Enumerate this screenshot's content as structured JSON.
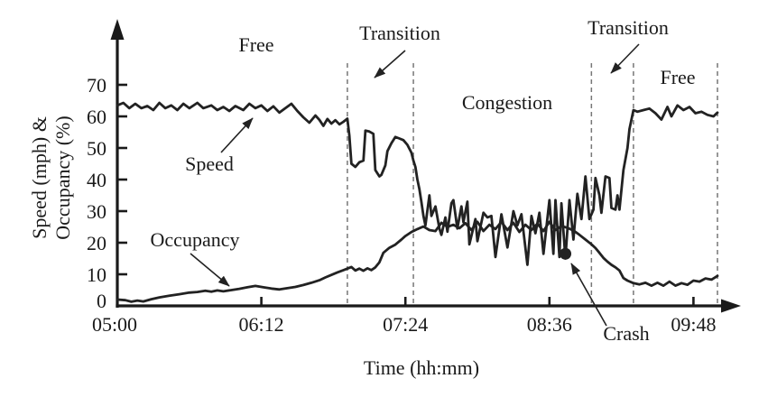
{
  "axes": {
    "x_label": "Time (hh:mm)",
    "y_label_line1": "Speed (mph) &",
    "y_label_line2": "Occupancy (%)"
  },
  "annotations": {
    "region_free_left": "Free",
    "region_transition_left": "Transition",
    "region_congestion": "Congestion",
    "region_transition_right": "Transition",
    "region_free_right": "Free",
    "series_speed": "Speed",
    "series_occupancy": "Occupancy",
    "crash": "Crash"
  },
  "colors": {
    "line": "#222222",
    "boundary_dash": "#777777",
    "text": "#1a1a1a",
    "background": "#ffffff"
  },
  "chart_data": {
    "type": "line",
    "title": "",
    "xlabel": "Time (hh:mm)",
    "ylabel": "Speed (mph) & Occupancy (%)",
    "x_unit": "minutes after 05:00",
    "xlim": [
      0,
      300
    ],
    "ylim": [
      0,
      75
    ],
    "grid": false,
    "legend": "inline-arrow-labels",
    "x_ticks": [
      {
        "t": 0,
        "label": "05:00"
      },
      {
        "t": 72,
        "label": "06:12"
      },
      {
        "t": 144,
        "label": "07:24"
      },
      {
        "t": 216,
        "label": "08:36"
      },
      {
        "t": 288,
        "label": "09:48"
      }
    ],
    "y_ticks": [
      0,
      10,
      20,
      30,
      40,
      50,
      60,
      70
    ],
    "region_boundaries_t": [
      115,
      148,
      237,
      258,
      300
    ],
    "regions": [
      {
        "label": "Free",
        "t_start": 0,
        "t_end": 115
      },
      {
        "label": "Transition",
        "t_start": 115,
        "t_end": 148
      },
      {
        "label": "Congestion",
        "t_start": 148,
        "t_end": 237
      },
      {
        "label": "Transition",
        "t_start": 237,
        "t_end": 258
      },
      {
        "label": "Free",
        "t_start": 258,
        "t_end": 300
      }
    ],
    "crash_point": {
      "t": 224,
      "value": 16.5,
      "label": "Crash"
    },
    "series": [
      {
        "name": "Speed",
        "unit": "mph",
        "points": [
          [
            0,
            63.5
          ],
          [
            3,
            64.3
          ],
          [
            6,
            62.6
          ],
          [
            9,
            64
          ],
          [
            12,
            62.6
          ],
          [
            15,
            63.3
          ],
          [
            18,
            62
          ],
          [
            21,
            64.3
          ],
          [
            24,
            62.6
          ],
          [
            27,
            63.5
          ],
          [
            30,
            62
          ],
          [
            33,
            64
          ],
          [
            36,
            62.6
          ],
          [
            40,
            64.3
          ],
          [
            43,
            62.6
          ],
          [
            47,
            63.5
          ],
          [
            50,
            62
          ],
          [
            53,
            63
          ],
          [
            56,
            61.7
          ],
          [
            59,
            63.3
          ],
          [
            63,
            62
          ],
          [
            66,
            64
          ],
          [
            69,
            62.6
          ],
          [
            72,
            63.5
          ],
          [
            75,
            61.7
          ],
          [
            78,
            63.2
          ],
          [
            81,
            61.2
          ],
          [
            84,
            62.6
          ],
          [
            87,
            64
          ],
          [
            90,
            61.7
          ],
          [
            93,
            59.7
          ],
          [
            96,
            58
          ],
          [
            99,
            60.3
          ],
          [
            101,
            58.9
          ],
          [
            103,
            57
          ],
          [
            105,
            59.2
          ],
          [
            107,
            57.7
          ],
          [
            109,
            58.8
          ],
          [
            111,
            57.5
          ],
          [
            113,
            58.3
          ],
          [
            115,
            59.3
          ],
          [
            116,
            54
          ],
          [
            117,
            45
          ],
          [
            119,
            44
          ],
          [
            121,
            45.5
          ],
          [
            123,
            46
          ],
          [
            124,
            55.5
          ],
          [
            126,
            55.2
          ],
          [
            128,
            54.5
          ],
          [
            129,
            43
          ],
          [
            131,
            41
          ],
          [
            132,
            41.5
          ],
          [
            134,
            44.5
          ],
          [
            135,
            49
          ],
          [
            137,
            51.5
          ],
          [
            139,
            53.5
          ],
          [
            141,
            53
          ],
          [
            143,
            52.5
          ],
          [
            145,
            51
          ],
          [
            147,
            48.5
          ],
          [
            148,
            46
          ],
          [
            149,
            44
          ],
          [
            150,
            40
          ],
          [
            151,
            37
          ],
          [
            152,
            33
          ],
          [
            153,
            28.5
          ],
          [
            154,
            25.5
          ],
          [
            156,
            35
          ],
          [
            157,
            28.5
          ],
          [
            159,
            31.5
          ],
          [
            161,
            24.5
          ],
          [
            162,
            22.5
          ],
          [
            164,
            28
          ],
          [
            165,
            23.5
          ],
          [
            167,
            32.5
          ],
          [
            168,
            33.5
          ],
          [
            170,
            24.5
          ],
          [
            172,
            31.5
          ],
          [
            173,
            26.5
          ],
          [
            175,
            33
          ],
          [
            176,
            19.5
          ],
          [
            179,
            27.5
          ],
          [
            180,
            20.5
          ],
          [
            183,
            29.5
          ],
          [
            185,
            28
          ],
          [
            187,
            28.5
          ],
          [
            189,
            15.5
          ],
          [
            192,
            29
          ],
          [
            195,
            18.5
          ],
          [
            198,
            30
          ],
          [
            200,
            25.5
          ],
          [
            202,
            29
          ],
          [
            205,
            13
          ],
          [
            207,
            28.5
          ],
          [
            209,
            23
          ],
          [
            211,
            29.5
          ],
          [
            213,
            16.5
          ],
          [
            216,
            33.5
          ],
          [
            218,
            16.5
          ],
          [
            219,
            33.5
          ],
          [
            221,
            15.5
          ],
          [
            222,
            32.5
          ],
          [
            224,
            15
          ],
          [
            226,
            33.5
          ],
          [
            228,
            21
          ],
          [
            230,
            35.5
          ],
          [
            232,
            27.5
          ],
          [
            234,
            41
          ],
          [
            236,
            27.5
          ],
          [
            238,
            30.5
          ],
          [
            239,
            40.5
          ],
          [
            241,
            35
          ],
          [
            242,
            29.5
          ],
          [
            244,
            41
          ],
          [
            246,
            40.5
          ],
          [
            247,
            31
          ],
          [
            249,
            30.5
          ],
          [
            250,
            35
          ],
          [
            251,
            30.5
          ],
          [
            253,
            43
          ],
          [
            255,
            50
          ],
          [
            256,
            56
          ],
          [
            258,
            62
          ],
          [
            260,
            61.5
          ],
          [
            263,
            62
          ],
          [
            266,
            62.5
          ],
          [
            269,
            61
          ],
          [
            272,
            59
          ],
          [
            275,
            63
          ],
          [
            277,
            60
          ],
          [
            280,
            63.5
          ],
          [
            283,
            62
          ],
          [
            286,
            63
          ],
          [
            289,
            61
          ],
          [
            292,
            61.5
          ],
          [
            295,
            60.5
          ],
          [
            298,
            60
          ],
          [
            300,
            61.2
          ]
        ]
      },
      {
        "name": "Occupancy",
        "unit": "%",
        "points": [
          [
            0,
            2
          ],
          [
            4,
            1.8
          ],
          [
            7,
            1.3
          ],
          [
            10,
            1.7
          ],
          [
            13,
            1.4
          ],
          [
            17,
            2.1
          ],
          [
            21,
            2.7
          ],
          [
            26,
            3.2
          ],
          [
            31,
            3.7
          ],
          [
            36,
            4.2
          ],
          [
            40,
            4.4
          ],
          [
            44,
            4.8
          ],
          [
            47,
            4.5
          ],
          [
            50,
            4.9
          ],
          [
            53,
            4.6
          ],
          [
            57,
            5
          ],
          [
            61,
            5.4
          ],
          [
            65,
            5.9
          ],
          [
            69,
            6.3
          ],
          [
            73,
            5.9
          ],
          [
            77,
            5.5
          ],
          [
            81,
            5.2
          ],
          [
            85,
            5.6
          ],
          [
            89,
            6
          ],
          [
            93,
            6.6
          ],
          [
            97,
            7.3
          ],
          [
            101,
            8.1
          ],
          [
            104,
            9
          ],
          [
            107,
            9.8
          ],
          [
            110,
            10.6
          ],
          [
            113,
            11.3
          ],
          [
            115,
            11.8
          ],
          [
            117,
            12.3
          ],
          [
            119,
            11.2
          ],
          [
            121,
            11.8
          ],
          [
            123,
            11.1
          ],
          [
            125,
            11.9
          ],
          [
            127,
            11.3
          ],
          [
            129,
            12.2
          ],
          [
            131,
            13.8
          ],
          [
            133,
            16.8
          ],
          [
            136,
            18.4
          ],
          [
            139,
            19.4
          ],
          [
            142,
            21
          ],
          [
            144,
            22.1
          ],
          [
            147,
            23.4
          ],
          [
            150,
            24.3
          ],
          [
            153,
            25.1
          ],
          [
            156,
            24
          ],
          [
            159,
            23.7
          ],
          [
            162,
            26.3
          ],
          [
            165,
            25
          ],
          [
            168,
            25.7
          ],
          [
            171,
            24.6
          ],
          [
            174,
            26.2
          ],
          [
            177,
            24
          ],
          [
            180,
            26.6
          ],
          [
            183,
            23.7
          ],
          [
            186,
            25.7
          ],
          [
            189,
            24.3
          ],
          [
            192,
            26.6
          ],
          [
            195,
            24
          ],
          [
            198,
            26.3
          ],
          [
            201,
            23.4
          ],
          [
            204,
            25.7
          ],
          [
            207,
            24
          ],
          [
            210,
            26
          ],
          [
            213,
            23.7
          ],
          [
            216,
            26.6
          ],
          [
            219,
            24
          ],
          [
            222,
            25.3
          ],
          [
            225,
            24.7
          ],
          [
            228,
            23.9
          ],
          [
            231,
            22.5
          ],
          [
            234,
            21
          ],
          [
            237,
            19.5
          ],
          [
            239,
            18.3
          ],
          [
            241,
            16.8
          ],
          [
            243,
            15.2
          ],
          [
            245,
            14
          ],
          [
            247,
            13
          ],
          [
            249,
            12.2
          ],
          [
            251,
            11.2
          ],
          [
            252,
            10
          ],
          [
            253,
            8.8
          ],
          [
            255,
            8
          ],
          [
            258,
            7.2
          ],
          [
            261,
            6.8
          ],
          [
            264,
            7.3
          ],
          [
            267,
            6.4
          ],
          [
            270,
            7.3
          ],
          [
            273,
            6.4
          ],
          [
            276,
            7.7
          ],
          [
            279,
            6.4
          ],
          [
            282,
            7.2
          ],
          [
            285,
            6.7
          ],
          [
            288,
            8
          ],
          [
            291,
            7.7
          ],
          [
            294,
            8.7
          ],
          [
            297,
            8.3
          ],
          [
            300,
            9.5
          ]
        ]
      }
    ]
  }
}
